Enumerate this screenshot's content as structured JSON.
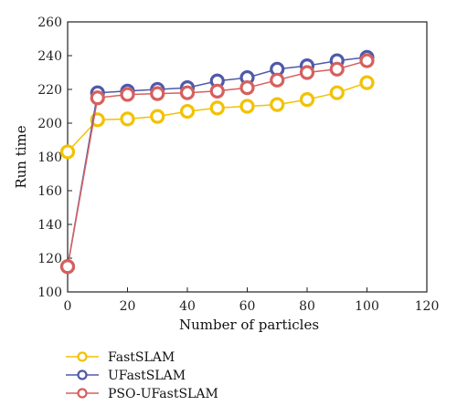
{
  "chart_data": {
    "type": "line",
    "x": [
      0,
      10,
      20,
      30,
      40,
      50,
      60,
      70,
      80,
      90,
      100
    ],
    "xlabel": "Number of particles",
    "ylabel": "Run time",
    "xlim": [
      0,
      120
    ],
    "ylim": [
      100,
      260
    ],
    "xticks": [
      "0",
      "20",
      "40",
      "60",
      "80",
      "100",
      "120"
    ],
    "yticks": [
      "100",
      "120",
      "140",
      "160",
      "180",
      "200",
      "220",
      "240",
      "260"
    ],
    "grid": false,
    "legend_position": "bottom-left",
    "series": [
      {
        "name": "FastSLAM",
        "color": "#f2c200",
        "values": [
          183,
          202,
          202.5,
          204,
          207,
          209,
          210,
          211,
          214,
          218,
          224
        ]
      },
      {
        "name": "UFastSLAM",
        "color": "#4f5aa8",
        "values": [
          115,
          218,
          219,
          220,
          221,
          225,
          227,
          232,
          234,
          237,
          239
        ]
      },
      {
        "name": "PSO-UFastSLAM",
        "color": "#d6605e",
        "values": [
          115,
          215,
          217,
          217.5,
          218,
          219,
          221,
          225.5,
          230,
          232,
          237
        ]
      }
    ]
  }
}
